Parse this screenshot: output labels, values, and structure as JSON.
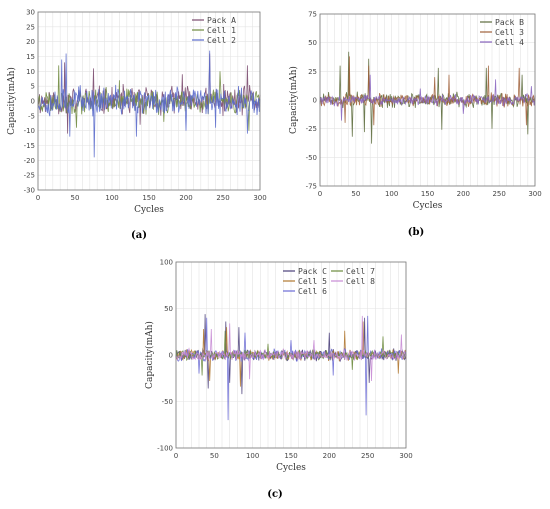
{
  "chart_data": [
    {
      "type": "line",
      "panel_label": "(a)",
      "xlabel": "Cycles",
      "ylabel": "Capacity(mAh)",
      "xlim": [
        0,
        300
      ],
      "ylim": [
        -30,
        30
      ],
      "xticks": [
        "0",
        "10",
        "20",
        "30",
        "40",
        "50",
        "60",
        "70",
        "80",
        "90",
        "100",
        "110",
        "120",
        "130",
        "140",
        "150",
        "160",
        "170",
        "180",
        "190",
        "200",
        "210",
        "220",
        "230",
        "240",
        "250",
        "260",
        "270",
        "280",
        "290",
        "300"
      ],
      "yticks": [
        "30",
        "25",
        "20",
        "15",
        "10",
        "5",
        "0",
        "-5",
        "-10",
        "-15",
        "-20",
        "-25",
        "-30"
      ],
      "grid": true,
      "legend_position": "top-right",
      "series": [
        {
          "name": "Pack A",
          "color": "#7a4a6e",
          "amplitude": 6,
          "seed": 11,
          "spikes": [
            [
              36,
              13
            ],
            [
              40,
              -11
            ],
            [
              75,
              11
            ],
            [
              138,
              -8
            ],
            [
              195,
              9
            ],
            [
              232,
              16
            ],
            [
              283,
              12
            ]
          ]
        },
        {
          "name": "Cell 1",
          "color": "#6f8a3e",
          "amplitude": 5,
          "seed": 23,
          "spikes": [
            [
              28,
              12
            ],
            [
              52,
              -9
            ],
            [
              110,
              7
            ],
            [
              170,
              -7
            ],
            [
              246,
              10
            ],
            [
              285,
              -10
            ]
          ]
        },
        {
          "name": "Cell 2",
          "color": "#5a6acb",
          "amplitude": 6,
          "seed": 37,
          "spikes": [
            [
              32,
              14
            ],
            [
              38,
              16
            ],
            [
              43,
              -12
            ],
            [
              76,
              -19
            ],
            [
              133,
              -12
            ],
            [
              200,
              -10
            ],
            [
              232,
              17
            ],
            [
              240,
              -9
            ],
            [
              283,
              -11
            ]
          ]
        }
      ]
    },
    {
      "type": "line",
      "panel_label": "(b)",
      "xlabel": "Cycles",
      "ylabel": "Capacity(mAh)",
      "xlim": [
        0,
        300
      ],
      "ylim": [
        -75,
        75
      ],
      "xticks": [
        "0",
        "10",
        "20",
        "30",
        "40",
        "50",
        "60",
        "70",
        "80",
        "90",
        "100",
        "110",
        "120",
        "130",
        "140",
        "150",
        "160",
        "170",
        "180",
        "190",
        "200",
        "210",
        "220",
        "230",
        "240",
        "250",
        "260",
        "270",
        "280",
        "290",
        "300"
      ],
      "yticks": [
        "75",
        "50",
        "25",
        "0",
        "-25",
        "-50",
        "-75"
      ],
      "grid": true,
      "legend_position": "top-right",
      "series": [
        {
          "name": "Pack B",
          "color": "#5c6b3c",
          "amplitude": 8,
          "seed": 51,
          "spikes": [
            [
              28,
              30
            ],
            [
              40,
              42
            ],
            [
              45,
              -32
            ],
            [
              62,
              -28
            ],
            [
              68,
              36
            ],
            [
              72,
              -38
            ],
            [
              165,
              28
            ],
            [
              170,
              -26
            ],
            [
              232,
              28
            ],
            [
              240,
              -25
            ],
            [
              282,
              22
            ],
            [
              290,
              -30
            ]
          ]
        },
        {
          "name": "Cell 3",
          "color": "#a0603a",
          "amplitude": 7,
          "seed": 67,
          "spikes": [
            [
              35,
              -20
            ],
            [
              41,
              38
            ],
            [
              68,
              30
            ],
            [
              75,
              -22
            ],
            [
              160,
              20
            ],
            [
              180,
              22
            ],
            [
              235,
              30
            ],
            [
              278,
              28
            ],
            [
              288,
              -22
            ]
          ]
        },
        {
          "name": "Cell 4",
          "color": "#8a66c0",
          "amplitude": 6,
          "seed": 83,
          "spikes": [
            [
              30,
              -18
            ],
            [
              70,
              22
            ],
            [
              140,
              10
            ],
            [
              200,
              -12
            ],
            [
              245,
              18
            ],
            [
              295,
              12
            ]
          ]
        }
      ]
    },
    {
      "type": "line",
      "panel_label": "(c)",
      "xlabel": "Cycles",
      "ylabel": "Capacity(mAh)",
      "xlim": [
        0,
        300
      ],
      "ylim": [
        -100,
        100
      ],
      "xticks": [
        "0",
        "10",
        "20",
        "30",
        "40",
        "50",
        "60",
        "70",
        "80",
        "90",
        "100",
        "110",
        "120",
        "130",
        "140",
        "150",
        "160",
        "170",
        "180",
        "190",
        "200",
        "210",
        "220",
        "230",
        "240",
        "250",
        "260",
        "270",
        "280",
        "290",
        "300"
      ],
      "yticks": [
        "100",
        "50",
        "0",
        "-50",
        "-100"
      ],
      "grid": true,
      "legend_position": "top-right",
      "legend_columns": 2,
      "series": [
        {
          "name": "Pack C",
          "color": "#4a3f7a",
          "amplitude": 8,
          "seed": 101,
          "spikes": [
            [
              38,
              44
            ],
            [
              42,
              -36
            ],
            [
              65,
              36
            ],
            [
              70,
              -30
            ],
            [
              82,
              30
            ],
            [
              86,
              -42
            ],
            [
              200,
              24
            ],
            [
              246,
              40
            ],
            [
              252,
              -30
            ]
          ]
        },
        {
          "name": "Cell 5",
          "color": "#b0772f",
          "amplitude": 7,
          "seed": 113,
          "spikes": [
            [
              36,
              28
            ],
            [
              44,
              -28
            ],
            [
              66,
              30
            ],
            [
              84,
              -34
            ],
            [
              220,
              26
            ],
            [
              244,
              36
            ],
            [
              290,
              -20
            ]
          ]
        },
        {
          "name": "Cell 6",
          "color": "#6a6ad4",
          "amplitude": 8,
          "seed": 127,
          "spikes": [
            [
              30,
              -20
            ],
            [
              40,
              40
            ],
            [
              68,
              -70
            ],
            [
              90,
              24
            ],
            [
              150,
              16
            ],
            [
              205,
              -22
            ],
            [
              248,
              -65
            ],
            [
              250,
              42
            ]
          ]
        },
        {
          "name": "Cell 7",
          "color": "#6b8a3c",
          "amplitude": 6,
          "seed": 139,
          "spikes": [
            [
              34,
              -22
            ],
            [
              64,
              26
            ],
            [
              120,
              12
            ],
            [
              230,
              -16
            ],
            [
              270,
              20
            ]
          ]
        },
        {
          "name": "Cell 8",
          "color": "#c78ad4",
          "amplitude": 7,
          "seed": 151,
          "spikes": [
            [
              46,
              28
            ],
            [
              70,
              34
            ],
            [
              96,
              -26
            ],
            [
              180,
              16
            ],
            [
              243,
              42
            ],
            [
              255,
              -28
            ],
            [
              294,
              22
            ]
          ]
        }
      ]
    }
  ]
}
